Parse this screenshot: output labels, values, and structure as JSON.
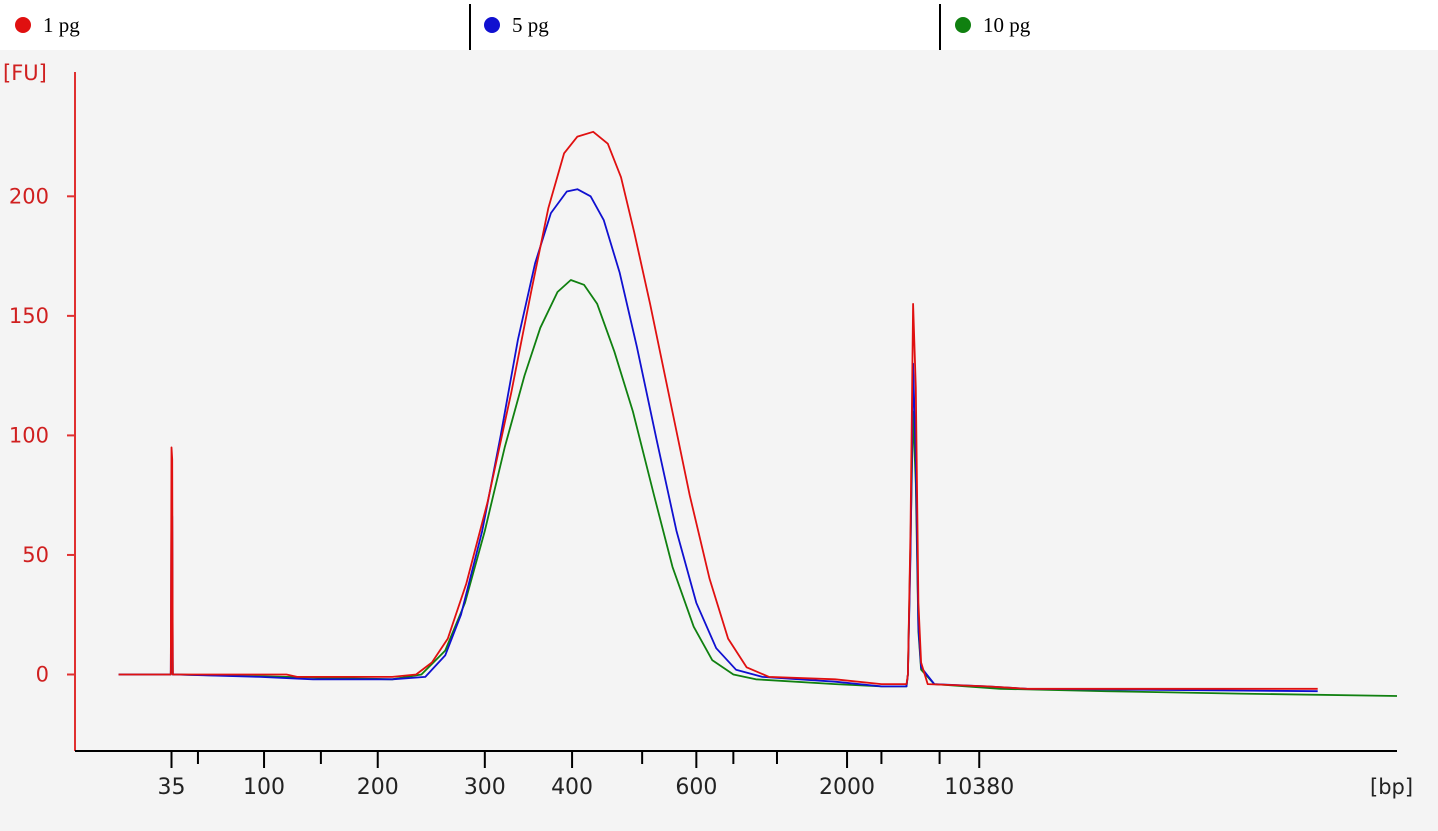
{
  "legend": [
    {
      "name": "1 pg",
      "color": "#e01010"
    },
    {
      "name": "5 pg",
      "color": "#1010d0"
    },
    {
      "name": "10 pg",
      "color": "#108010"
    }
  ],
  "colors": {
    "axis": "#e03030",
    "yaxis_text": "#d02020",
    "xaxis_text": "#222222",
    "unit_x": "#222222"
  },
  "chart_data": {
    "type": "line",
    "ylabel": "[FU]",
    "xlabel": "[bp]",
    "ylim": [
      -32,
      252
    ],
    "xlim": [
      0,
      1000
    ],
    "y_ticks": [
      0,
      50,
      100,
      150,
      200
    ],
    "x_ticks": [
      {
        "label": "35",
        "pos": 73
      },
      {
        "label": "",
        "pos": 93
      },
      {
        "label": "100",
        "pos": 143
      },
      {
        "label": "",
        "pos": 186
      },
      {
        "label": "200",
        "pos": 229
      },
      {
        "label": "300",
        "pos": 310
      },
      {
        "label": "400",
        "pos": 376
      },
      {
        "label": "",
        "pos": 429
      },
      {
        "label": "600",
        "pos": 470
      },
      {
        "label": "",
        "pos": 498
      },
      {
        "label": "",
        "pos": 531
      },
      {
        "label": "2000",
        "pos": 584
      },
      {
        "label": "",
        "pos": 610
      },
      {
        "label": "",
        "pos": 654
      },
      {
        "label": "10380",
        "pos": 684
      }
    ],
    "series": [
      {
        "name": "1 pg",
        "color": "#e01010",
        "points": [
          [
            33,
            0
          ],
          [
            70,
            0
          ],
          [
            72.5,
            0
          ],
          [
            73,
            95
          ],
          [
            73.5,
            90
          ],
          [
            74,
            0
          ],
          [
            76,
            0
          ],
          [
            160,
            0
          ],
          [
            168,
            -1
          ],
          [
            180,
            -1
          ],
          [
            240,
            -1
          ],
          [
            258,
            0
          ],
          [
            270,
            5
          ],
          [
            282,
            15
          ],
          [
            296,
            38
          ],
          [
            312,
            72
          ],
          [
            330,
            118
          ],
          [
            345,
            160
          ],
          [
            358,
            195
          ],
          [
            370,
            218
          ],
          [
            380,
            225
          ],
          [
            392,
            227
          ],
          [
            403,
            222
          ],
          [
            413,
            208
          ],
          [
            423,
            185
          ],
          [
            435,
            155
          ],
          [
            450,
            115
          ],
          [
            465,
            75
          ],
          [
            480,
            40
          ],
          [
            494,
            15
          ],
          [
            508,
            3
          ],
          [
            525,
            -1
          ],
          [
            575,
            -2
          ],
          [
            610,
            -4
          ],
          [
            629,
            -4
          ],
          [
            630,
            0
          ],
          [
            632,
            60
          ],
          [
            634,
            155
          ],
          [
            636,
            120
          ],
          [
            638,
            30
          ],
          [
            640,
            5
          ],
          [
            645,
            -4
          ],
          [
            690,
            -5
          ],
          [
            720,
            -6
          ],
          [
            940,
            -6
          ]
        ]
      },
      {
        "name": "5 pg",
        "color": "#1010d0",
        "points": [
          [
            33,
            0
          ],
          [
            70,
            0
          ],
          [
            72.5,
            0
          ],
          [
            73,
            70
          ],
          [
            73.5,
            66
          ],
          [
            74,
            0
          ],
          [
            76,
            0
          ],
          [
            140,
            -1
          ],
          [
            180,
            -2
          ],
          [
            240,
            -2
          ],
          [
            265,
            -1
          ],
          [
            280,
            8
          ],
          [
            292,
            25
          ],
          [
            308,
            60
          ],
          [
            322,
            100
          ],
          [
            335,
            140
          ],
          [
            348,
            172
          ],
          [
            360,
            193
          ],
          [
            372,
            202
          ],
          [
            380,
            203
          ],
          [
            390,
            200
          ],
          [
            400,
            190
          ],
          [
            412,
            168
          ],
          [
            425,
            137
          ],
          [
            440,
            98
          ],
          [
            455,
            60
          ],
          [
            470,
            30
          ],
          [
            485,
            11
          ],
          [
            500,
            2
          ],
          [
            520,
            -1
          ],
          [
            575,
            -3
          ],
          [
            610,
            -5
          ],
          [
            629,
            -5
          ],
          [
            630,
            0
          ],
          [
            632,
            50
          ],
          [
            634,
            130
          ],
          [
            636,
            90
          ],
          [
            638,
            20
          ],
          [
            640,
            3
          ],
          [
            650,
            -4
          ],
          [
            690,
            -5
          ],
          [
            720,
            -6
          ],
          [
            940,
            -7
          ]
        ]
      },
      {
        "name": "10 pg",
        "color": "#108010",
        "points": [
          [
            33,
            0
          ],
          [
            70,
            0
          ],
          [
            72.5,
            0
          ],
          [
            73,
            15
          ],
          [
            73.5,
            22
          ],
          [
            74,
            0
          ],
          [
            76,
            0
          ],
          [
            160,
            -1
          ],
          [
            240,
            -2
          ],
          [
            262,
            0
          ],
          [
            280,
            10
          ],
          [
            295,
            30
          ],
          [
            310,
            60
          ],
          [
            325,
            95
          ],
          [
            340,
            125
          ],
          [
            352,
            145
          ],
          [
            365,
            160
          ],
          [
            375,
            165
          ],
          [
            385,
            163
          ],
          [
            395,
            155
          ],
          [
            408,
            135
          ],
          [
            422,
            110
          ],
          [
            438,
            75
          ],
          [
            452,
            45
          ],
          [
            468,
            20
          ],
          [
            482,
            6
          ],
          [
            498,
            0
          ],
          [
            515,
            -2
          ],
          [
            575,
            -4
          ],
          [
            610,
            -5
          ],
          [
            629,
            -5
          ],
          [
            630,
            0
          ],
          [
            632,
            55
          ],
          [
            634,
            110
          ],
          [
            636,
            80
          ],
          [
            638,
            18
          ],
          [
            640,
            2
          ],
          [
            650,
            -4
          ],
          [
            700,
            -6
          ],
          [
            780,
            -7
          ],
          [
            880,
            -8
          ],
          [
            1000,
            -9
          ]
        ]
      }
    ]
  }
}
